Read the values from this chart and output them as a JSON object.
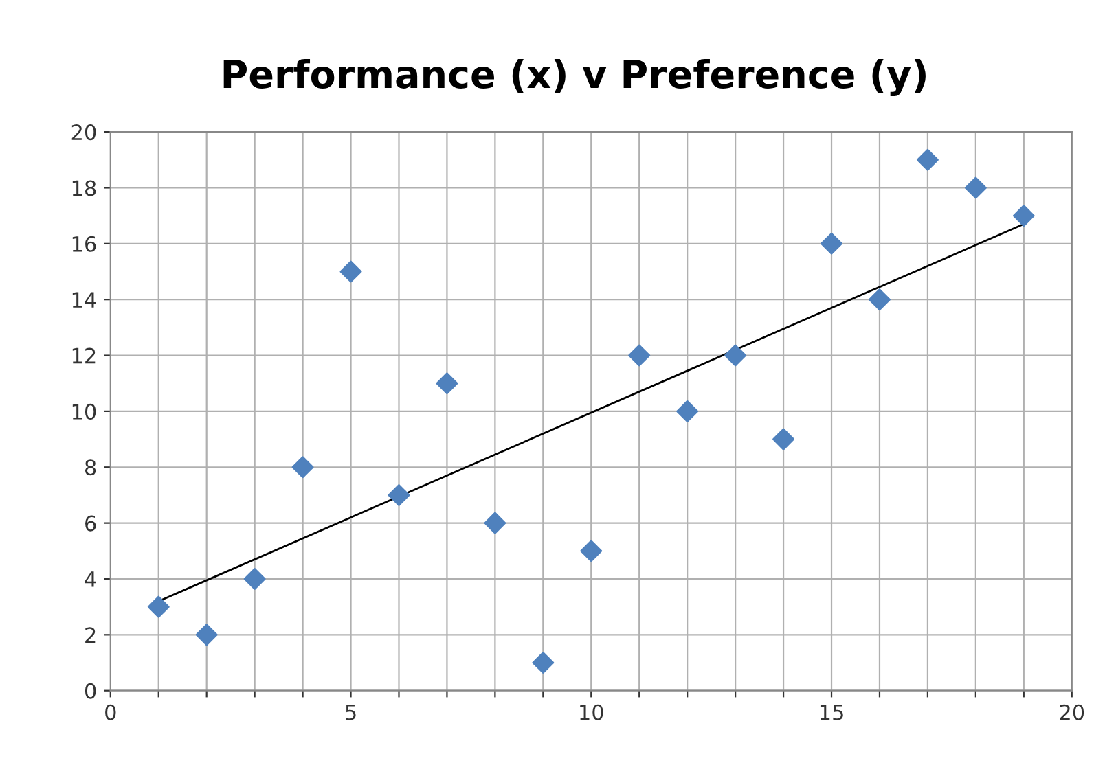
{
  "chart_data": {
    "type": "scatter",
    "title": "Performance (x) v Preference (y)",
    "series": [
      {
        "color": "#4f81bd",
        "marker": "diamond",
        "x": [
          1,
          2,
          3,
          4,
          5,
          6,
          7,
          8,
          9,
          10,
          11,
          12,
          13,
          14,
          15,
          16,
          17,
          18,
          19
        ],
        "values": [
          3,
          2,
          4,
          8,
          15,
          7,
          11,
          6,
          1,
          5,
          12,
          10,
          12,
          9,
          16,
          14,
          19,
          18,
          17
        ]
      },
      {
        "type": "line",
        "color": "#000000",
        "marker": "none",
        "line_style": "solid",
        "x": [
          1,
          19
        ],
        "values": [
          3.2,
          16.7
        ]
      }
    ],
    "xlim": [
      0,
      20
    ],
    "xticks": [
      0,
      {
        "value": 1,
        "label": null
      },
      {
        "value": 2,
        "label": null
      },
      {
        "value": 3,
        "label": null
      },
      {
        "value": 4,
        "label": null
      },
      5,
      {
        "value": 6,
        "label": null
      },
      {
        "value": 7,
        "label": null
      },
      {
        "value": 8,
        "label": null
      },
      {
        "value": 9,
        "label": null
      },
      10,
      {
        "value": 11,
        "label": null
      },
      {
        "value": 12,
        "label": null
      },
      {
        "value": 13,
        "label": null
      },
      {
        "value": 14,
        "label": null
      },
      15,
      {
        "value": 16,
        "label": null
      },
      {
        "value": 17,
        "label": null
      },
      {
        "value": 18,
        "label": null
      },
      {
        "value": 19,
        "label": null
      },
      20
    ],
    "ylim": [
      0,
      20
    ],
    "yticks": [
      0,
      2,
      4,
      6,
      8,
      10,
      12,
      14,
      16,
      18,
      20
    ],
    "grid": true,
    "legend": false
  }
}
